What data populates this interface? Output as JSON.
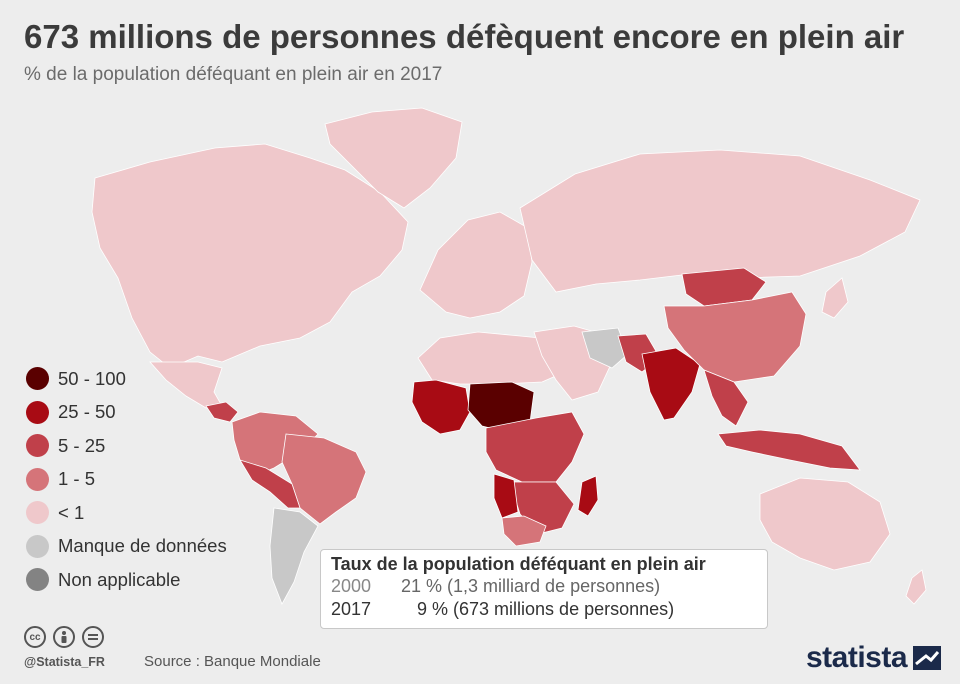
{
  "header": {
    "title": "673 millions de personnes défèquent encore en plein air",
    "subtitle": "% de la population déféquant en plein air en 2017"
  },
  "legend": {
    "items": [
      {
        "label": "50 - 100",
        "color": "#5a0000"
      },
      {
        "label": "25 - 50",
        "color": "#a80b14"
      },
      {
        "label": "5 - 25",
        "color": "#c0404a"
      },
      {
        "label": "1 - 5",
        "color": "#d57479"
      },
      {
        "label": "< 1",
        "color": "#efc8cb"
      },
      {
        "label": "Manque de données",
        "color": "#c8c8c8"
      },
      {
        "label": "Non applicable",
        "color": "#838383"
      }
    ]
  },
  "inset": {
    "title": "Taux de la population déféquant en plein air",
    "rows": [
      {
        "year": "2000",
        "value": "21 % (1,3 milliard de personnes)"
      },
      {
        "year": "2017",
        "value": "9 % (673 millions de personnes)"
      }
    ]
  },
  "footer": {
    "handle": "@Statista_FR",
    "source": "Source : Banque Mondiale",
    "brand": "statista",
    "license_icons": [
      "cc-icon",
      "by-icon",
      "nd-icon"
    ]
  },
  "regions": [
    {
      "name": "north-america",
      "class": "< 1"
    },
    {
      "name": "greenland",
      "class": "< 1"
    },
    {
      "name": "mexico",
      "class": "< 1"
    },
    {
      "name": "central-america",
      "class": "5 - 25"
    },
    {
      "name": "south-america-north",
      "class": "1 - 5"
    },
    {
      "name": "brazil",
      "class": "1 - 5"
    },
    {
      "name": "bolivia",
      "class": "5 - 25"
    },
    {
      "name": "southern-cone",
      "class": "Manque de données"
    },
    {
      "name": "europe",
      "class": "< 1"
    },
    {
      "name": "russia",
      "class": "< 1"
    },
    {
      "name": "north-africa",
      "class": "< 1"
    },
    {
      "name": "sahel",
      "class": "50 - 100"
    },
    {
      "name": "west-africa",
      "class": "25 - 50"
    },
    {
      "name": "central-africa",
      "class": "5 - 25"
    },
    {
      "name": "southern-africa",
      "class": "5 - 25"
    },
    {
      "name": "namibia",
      "class": "25 - 50"
    },
    {
      "name": "south-africa",
      "class": "1 - 5"
    },
    {
      "name": "madagascar",
      "class": "25 - 50"
    },
    {
      "name": "middle-east",
      "class": "< 1"
    },
    {
      "name": "iran",
      "class": "Manque de données"
    },
    {
      "name": "india",
      "class": "25 - 50"
    },
    {
      "name": "pakistan",
      "class": "5 - 25"
    },
    {
      "name": "china",
      "class": "1 - 5"
    },
    {
      "name": "mongolia",
      "class": "5 - 25"
    },
    {
      "name": "southeast-asia",
      "class": "5 - 25"
    },
    {
      "name": "indonesia",
      "class": "5 - 25"
    },
    {
      "name": "australia",
      "class": "< 1"
    },
    {
      "name": "japan",
      "class": "< 1"
    }
  ]
}
